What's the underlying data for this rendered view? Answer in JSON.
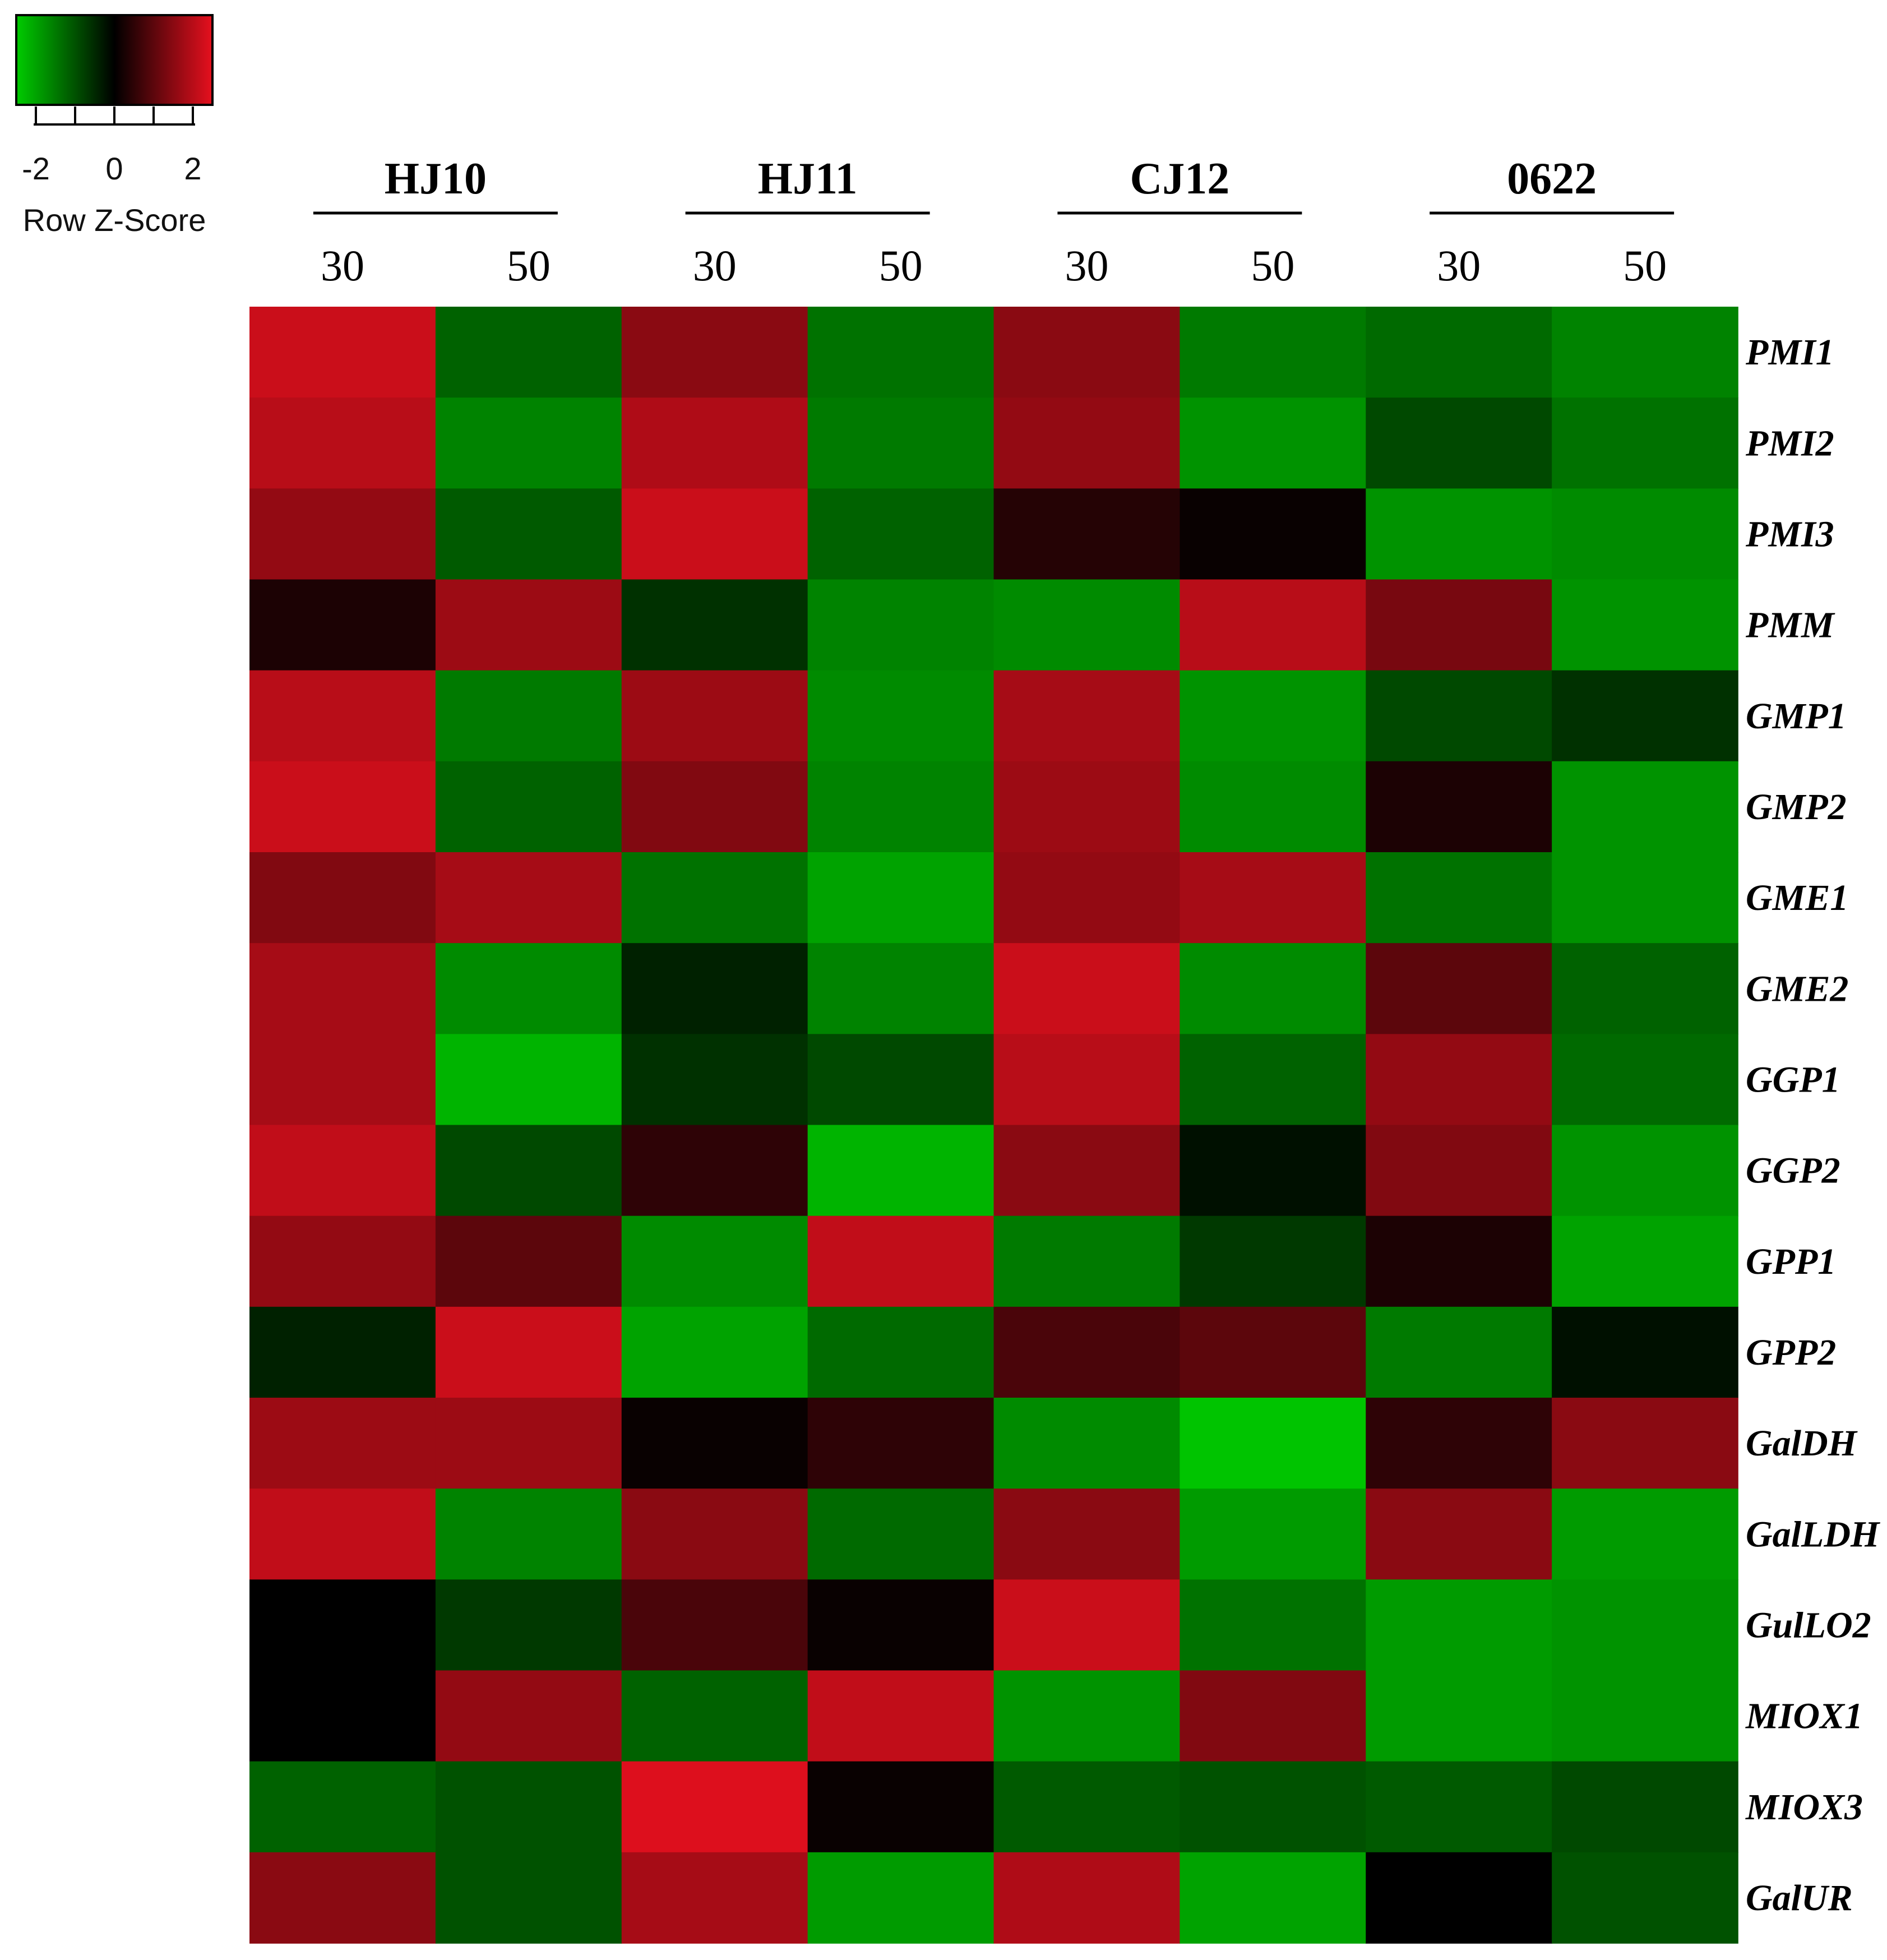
{
  "chart_data": {
    "type": "heatmap",
    "color_key": {
      "title": "Row Z-Score",
      "ticks": [
        "-2",
        "0",
        "2"
      ],
      "range": [
        -2.5,
        2.5
      ],
      "colors": {
        "low": "#00cc00",
        "mid": "#000000",
        "high": "#e6101e"
      }
    },
    "groups": [
      {
        "label": "HJ10",
        "columns": [
          "30",
          "50"
        ]
      },
      {
        "label": "HJ11",
        "columns": [
          "30",
          "50"
        ]
      },
      {
        "label": "CJ12",
        "columns": [
          "30",
          "50"
        ]
      },
      {
        "label": "0622",
        "columns": [
          "30",
          "50"
        ]
      }
    ],
    "rows": [
      "PMI1",
      "PMI2",
      "PMI3",
      "PMM",
      "GMP1",
      "GMP2",
      "GME1",
      "GME2",
      "GGP1",
      "GGP2",
      "GPP1",
      "GPP2",
      "GalDH",
      "GalLDH",
      "GulLO2",
      "MIOX1",
      "MIOX3",
      "GalUR"
    ],
    "values": [
      [
        2.2,
        -1.2,
        1.5,
        -1.4,
        1.5,
        -1.5,
        -1.3,
        -1.6
      ],
      [
        2.0,
        -1.6,
        1.9,
        -1.5,
        1.6,
        -1.8,
        -0.9,
        -1.4
      ],
      [
        1.6,
        -1.1,
        2.2,
        -1.2,
        0.4,
        0.1,
        -1.8,
        -1.7
      ],
      [
        0.3,
        1.7,
        -0.6,
        -1.6,
        -1.7,
        2.0,
        1.3,
        -1.8
      ],
      [
        2.0,
        -1.5,
        1.7,
        -1.7,
        1.8,
        -1.8,
        -0.9,
        -0.6
      ],
      [
        2.2,
        -1.2,
        1.4,
        -1.6,
        1.7,
        -1.7,
        0.3,
        -1.8
      ],
      [
        1.4,
        1.8,
        -1.4,
        -2.0,
        1.6,
        1.8,
        -1.4,
        -1.8
      ],
      [
        1.8,
        -1.7,
        -0.4,
        -1.6,
        2.2,
        -1.7,
        1.0,
        -1.2
      ],
      [
        1.8,
        -2.2,
        -0.6,
        -0.9,
        2.0,
        -1.2,
        1.6,
        -1.3
      ],
      [
        2.1,
        -0.9,
        0.5,
        -2.2,
        1.5,
        -0.2,
        1.4,
        -1.8
      ],
      [
        1.6,
        1.0,
        -1.7,
        2.1,
        -1.5,
        -0.7,
        0.3,
        -2.0
      ],
      [
        -0.4,
        2.2,
        -2.0,
        -1.3,
        0.8,
        1.0,
        -1.5,
        -0.2
      ],
      [
        1.7,
        1.7,
        0.1,
        0.5,
        -1.7,
        -2.4,
        0.5,
        1.5
      ],
      [
        2.1,
        -1.6,
        1.5,
        -1.3,
        1.5,
        -1.9,
        1.5,
        -1.9
      ],
      [
        0.0,
        -0.7,
        0.8,
        0.1,
        2.2,
        -1.4,
        -1.9,
        -1.8
      ],
      [
        0.0,
        1.6,
        -1.2,
        2.1,
        -1.8,
        1.4,
        -1.9,
        -1.8
      ],
      [
        -1.2,
        -1.0,
        2.4,
        0.1,
        -1.1,
        -1.0,
        -1.1,
        -0.9
      ],
      [
        1.5,
        -1.0,
        1.8,
        -1.9,
        1.9,
        -2.0,
        0.0,
        -1.0
      ]
    ]
  }
}
